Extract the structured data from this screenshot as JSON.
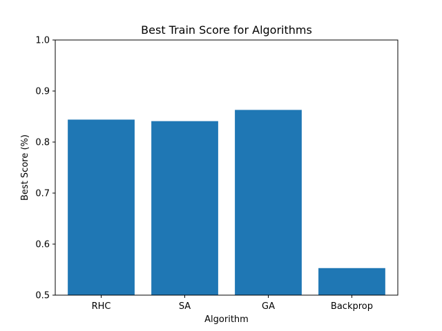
{
  "chart_data": {
    "type": "bar",
    "title": "Best Train Score for Algorithms",
    "xlabel": "Algorithm",
    "ylabel": "Best Score (%)",
    "categories": [
      "RHC",
      "SA",
      "GA",
      "Backprop"
    ],
    "values": [
      0.844,
      0.841,
      0.863,
      0.553
    ],
    "ylim": [
      0.5,
      1.0
    ],
    "yticks": [
      0.5,
      0.6,
      0.7,
      0.8,
      0.9,
      1.0
    ],
    "ytick_labels": [
      "0.5",
      "0.6",
      "0.7",
      "0.8",
      "0.9",
      "1.0"
    ],
    "bar_color": "#1f77b4",
    "grid": false,
    "legend": "none"
  }
}
